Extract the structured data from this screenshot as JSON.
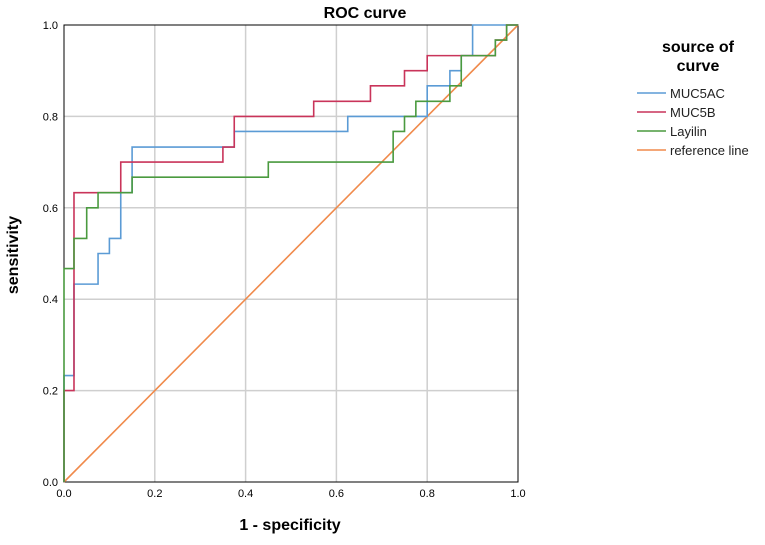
{
  "chart_data": {
    "type": "line",
    "title": "ROC curve",
    "xlabel": "1 - specificity",
    "ylabel": "sensitivity",
    "xlim": [
      0.0,
      1.0
    ],
    "ylim": [
      0.0,
      1.0
    ],
    "grid": true,
    "x_ticks": [
      "0.0",
      "0.2",
      "0.4",
      "0.6",
      "0.8",
      "1.0"
    ],
    "y_ticks": [
      "0.0",
      "0.2",
      "0.4",
      "0.6",
      "0.8",
      "1.0"
    ],
    "legend": {
      "title_line1": "source of",
      "title_line2": "curve",
      "position": "right"
    },
    "series": [
      {
        "name": "MUC5AC",
        "color": "#5b9bd5",
        "points": [
          [
            0,
            0
          ],
          [
            0,
            0.233
          ],
          [
            0.022,
            0.233
          ],
          [
            0.022,
            0.433
          ],
          [
            0.075,
            0.433
          ],
          [
            0.075,
            0.5
          ],
          [
            0.1,
            0.5
          ],
          [
            0.1,
            0.533
          ],
          [
            0.125,
            0.533
          ],
          [
            0.125,
            0.633
          ],
          [
            0.15,
            0.633
          ],
          [
            0.15,
            0.733
          ],
          [
            0.375,
            0.733
          ],
          [
            0.375,
            0.767
          ],
          [
            0.625,
            0.767
          ],
          [
            0.625,
            0.8
          ],
          [
            0.8,
            0.8
          ],
          [
            0.8,
            0.867
          ],
          [
            0.85,
            0.867
          ],
          [
            0.85,
            0.9
          ],
          [
            0.875,
            0.9
          ],
          [
            0.875,
            0.933
          ],
          [
            0.9,
            0.933
          ],
          [
            0.9,
            1.0
          ],
          [
            1.0,
            1.0
          ]
        ]
      },
      {
        "name": "MUC5B",
        "color": "#c9345a",
        "points": [
          [
            0,
            0
          ],
          [
            0,
            0.2
          ],
          [
            0.022,
            0.2
          ],
          [
            0.022,
            0.633
          ],
          [
            0.125,
            0.633
          ],
          [
            0.125,
            0.7
          ],
          [
            0.35,
            0.7
          ],
          [
            0.35,
            0.733
          ],
          [
            0.375,
            0.733
          ],
          [
            0.375,
            0.8
          ],
          [
            0.55,
            0.8
          ],
          [
            0.55,
            0.833
          ],
          [
            0.675,
            0.833
          ],
          [
            0.675,
            0.867
          ],
          [
            0.75,
            0.867
          ],
          [
            0.75,
            0.9
          ],
          [
            0.8,
            0.9
          ],
          [
            0.8,
            0.933
          ],
          [
            0.95,
            0.933
          ],
          [
            0.95,
            0.967
          ],
          [
            0.975,
            0.967
          ],
          [
            0.975,
            1.0
          ],
          [
            1.0,
            1.0
          ]
        ]
      },
      {
        "name": "Layilin",
        "color": "#4a9a3f",
        "points": [
          [
            0,
            0
          ],
          [
            0,
            0.467
          ],
          [
            0.022,
            0.467
          ],
          [
            0.022,
            0.533
          ],
          [
            0.05,
            0.533
          ],
          [
            0.05,
            0.6
          ],
          [
            0.075,
            0.6
          ],
          [
            0.075,
            0.633
          ],
          [
            0.15,
            0.633
          ],
          [
            0.15,
            0.667
          ],
          [
            0.45,
            0.667
          ],
          [
            0.45,
            0.7
          ],
          [
            0.725,
            0.7
          ],
          [
            0.725,
            0.767
          ],
          [
            0.75,
            0.767
          ],
          [
            0.75,
            0.8
          ],
          [
            0.775,
            0.8
          ],
          [
            0.775,
            0.833
          ],
          [
            0.85,
            0.833
          ],
          [
            0.85,
            0.867
          ],
          [
            0.875,
            0.867
          ],
          [
            0.875,
            0.933
          ],
          [
            0.95,
            0.933
          ],
          [
            0.95,
            0.967
          ],
          [
            0.975,
            0.967
          ],
          [
            0.975,
            1.0
          ],
          [
            1.0,
            1.0
          ]
        ]
      },
      {
        "name": "reference line",
        "color": "#f08a4b",
        "points": [
          [
            0,
            0
          ],
          [
            1,
            1
          ]
        ]
      }
    ]
  }
}
